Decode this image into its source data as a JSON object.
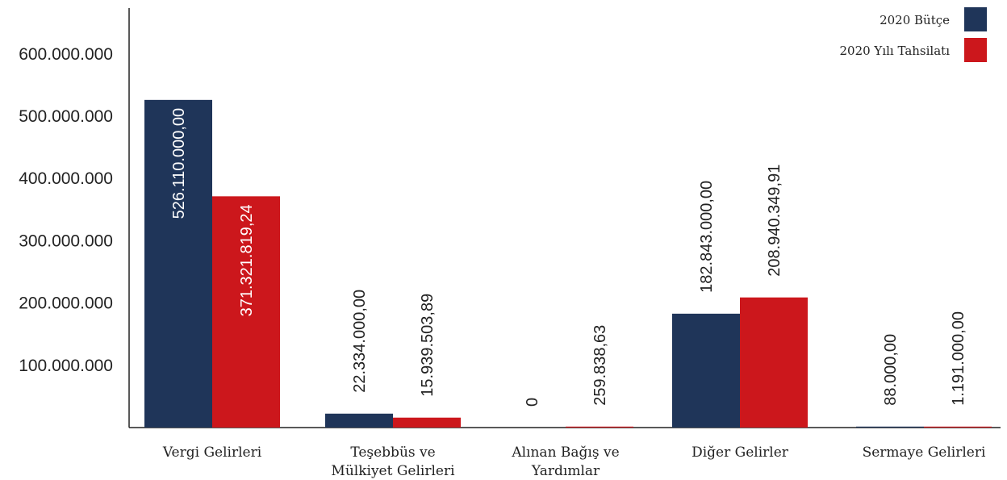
{
  "colors": {
    "budget": "#1f3559",
    "actual": "#cc171c",
    "axis": "#222222"
  },
  "chart_data": {
    "type": "bar",
    "title": "",
    "xlabel": "",
    "ylabel": "",
    "ylim": [
      0,
      650000000
    ],
    "yticks": [
      100000000,
      200000000,
      300000000,
      400000000,
      500000000,
      600000000
    ],
    "ytick_labels": [
      "100.000.000",
      "200.000.000",
      "300.000.000",
      "400.000.000",
      "500.000.000",
      "600.000.000"
    ],
    "categories": [
      [
        "Vergi Gelirleri"
      ],
      [
        "Teşebbüs ve",
        "Mülkiyet Gelirleri"
      ],
      [
        "Alınan Bağış ve",
        "Yardımlar"
      ],
      [
        "Diğer Gelirler"
      ],
      [
        "Sermaye Gelirleri"
      ]
    ],
    "series": [
      {
        "name": "2020 Bütçe",
        "color": "#1f3559",
        "values": [
          526110000.0,
          22334000.0,
          0,
          182843000.0,
          88000.0
        ],
        "labels": [
          "526.110.000,00",
          "22.334.000,00",
          "0",
          "182.843.000,00",
          "88.000,00"
        ]
      },
      {
        "name": "2020 Yılı Tahsilatı",
        "color": "#cc171c",
        "values": [
          371321819.24,
          15939503.89,
          259838.63,
          208940349.91,
          1191000.0
        ],
        "labels": [
          "371.321.819,24",
          "15.939.503,89",
          "259.838,63",
          "208.940.349,91",
          "1.191.000,00"
        ]
      }
    ],
    "legend": {
      "position": "top-right"
    },
    "grid": false
  }
}
